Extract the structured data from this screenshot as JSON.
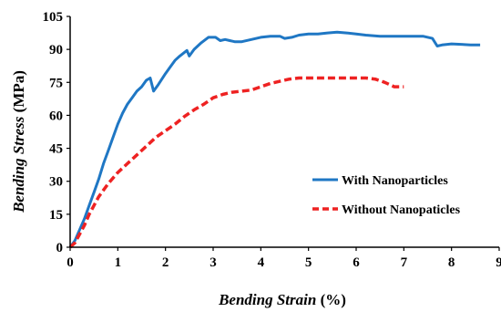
{
  "chart_data": {
    "type": "line",
    "xlabel": "Bending Strain (%)",
    "ylabel": "Bending Stress (MPa)",
    "xlim": [
      0,
      9
    ],
    "ylim": [
      0,
      105
    ],
    "x_ticks": [
      "0",
      "1",
      "2",
      "3",
      "4",
      "5",
      "6",
      "7",
      "8",
      "9"
    ],
    "y_ticks": [
      "0",
      "15",
      "30",
      "45",
      "60",
      "75",
      "90",
      "105"
    ],
    "grid": false,
    "legend_position": "right",
    "series": [
      {
        "name": "With Nanoparticles",
        "color": "#1f77c4",
        "style": "solid",
        "points": [
          [
            0,
            0
          ],
          [
            0.1,
            3
          ],
          [
            0.2,
            8
          ],
          [
            0.3,
            13
          ],
          [
            0.4,
            19
          ],
          [
            0.5,
            25
          ],
          [
            0.6,
            31
          ],
          [
            0.7,
            38
          ],
          [
            0.8,
            44
          ],
          [
            0.9,
            50
          ],
          [
            1.0,
            56
          ],
          [
            1.1,
            61
          ],
          [
            1.2,
            65
          ],
          [
            1.3,
            68
          ],
          [
            1.4,
            71
          ],
          [
            1.5,
            73
          ],
          [
            1.6,
            76
          ],
          [
            1.68,
            77
          ],
          [
            1.75,
            71
          ],
          [
            1.85,
            74
          ],
          [
            2.0,
            79
          ],
          [
            2.1,
            82
          ],
          [
            2.2,
            85
          ],
          [
            2.3,
            87
          ],
          [
            2.45,
            89.5
          ],
          [
            2.5,
            87
          ],
          [
            2.6,
            90
          ],
          [
            2.75,
            93
          ],
          [
            2.9,
            95.5
          ],
          [
            3.05,
            95.5
          ],
          [
            3.15,
            94
          ],
          [
            3.25,
            94.5
          ],
          [
            3.35,
            94
          ],
          [
            3.45,
            93.5
          ],
          [
            3.6,
            93.5
          ],
          [
            3.8,
            94.5
          ],
          [
            4.0,
            95.5
          ],
          [
            4.2,
            96
          ],
          [
            4.4,
            96
          ],
          [
            4.5,
            95
          ],
          [
            4.65,
            95.5
          ],
          [
            4.8,
            96.5
          ],
          [
            5.0,
            97
          ],
          [
            5.2,
            97
          ],
          [
            5.4,
            97.5
          ],
          [
            5.6,
            97.8
          ],
          [
            5.8,
            97.5
          ],
          [
            6.0,
            97
          ],
          [
            6.2,
            96.5
          ],
          [
            6.5,
            96
          ],
          [
            6.8,
            96
          ],
          [
            7.1,
            96
          ],
          [
            7.4,
            96
          ],
          [
            7.6,
            95
          ],
          [
            7.7,
            91.5
          ],
          [
            7.8,
            92
          ],
          [
            8.0,
            92.5
          ],
          [
            8.2,
            92.3
          ],
          [
            8.4,
            92
          ],
          [
            8.6,
            92
          ]
        ]
      },
      {
        "name": "Without Nanopaticles",
        "color": "#ee2222",
        "style": "dashed",
        "points": [
          [
            0,
            0
          ],
          [
            0.1,
            2
          ],
          [
            0.2,
            6
          ],
          [
            0.3,
            10
          ],
          [
            0.4,
            15
          ],
          [
            0.5,
            19
          ],
          [
            0.6,
            23
          ],
          [
            0.8,
            29
          ],
          [
            1.0,
            34
          ],
          [
            1.2,
            38
          ],
          [
            1.4,
            42
          ],
          [
            1.6,
            46
          ],
          [
            1.8,
            50
          ],
          [
            2.0,
            53
          ],
          [
            2.2,
            56
          ],
          [
            2.4,
            59.5
          ],
          [
            2.6,
            62.5
          ],
          [
            2.8,
            65
          ],
          [
            3.0,
            68
          ],
          [
            3.2,
            69.5
          ],
          [
            3.4,
            70.5
          ],
          [
            3.6,
            71
          ],
          [
            3.8,
            71.5
          ],
          [
            4.0,
            73
          ],
          [
            4.2,
            74.5
          ],
          [
            4.4,
            75.5
          ],
          [
            4.6,
            76.5
          ],
          [
            4.8,
            77
          ],
          [
            5.0,
            77
          ],
          [
            5.2,
            77
          ],
          [
            5.4,
            77
          ],
          [
            5.6,
            77
          ],
          [
            5.8,
            77
          ],
          [
            6.0,
            77
          ],
          [
            6.2,
            77
          ],
          [
            6.4,
            76.5
          ],
          [
            6.6,
            75
          ],
          [
            6.8,
            73
          ],
          [
            7.0,
            73
          ]
        ]
      }
    ]
  }
}
